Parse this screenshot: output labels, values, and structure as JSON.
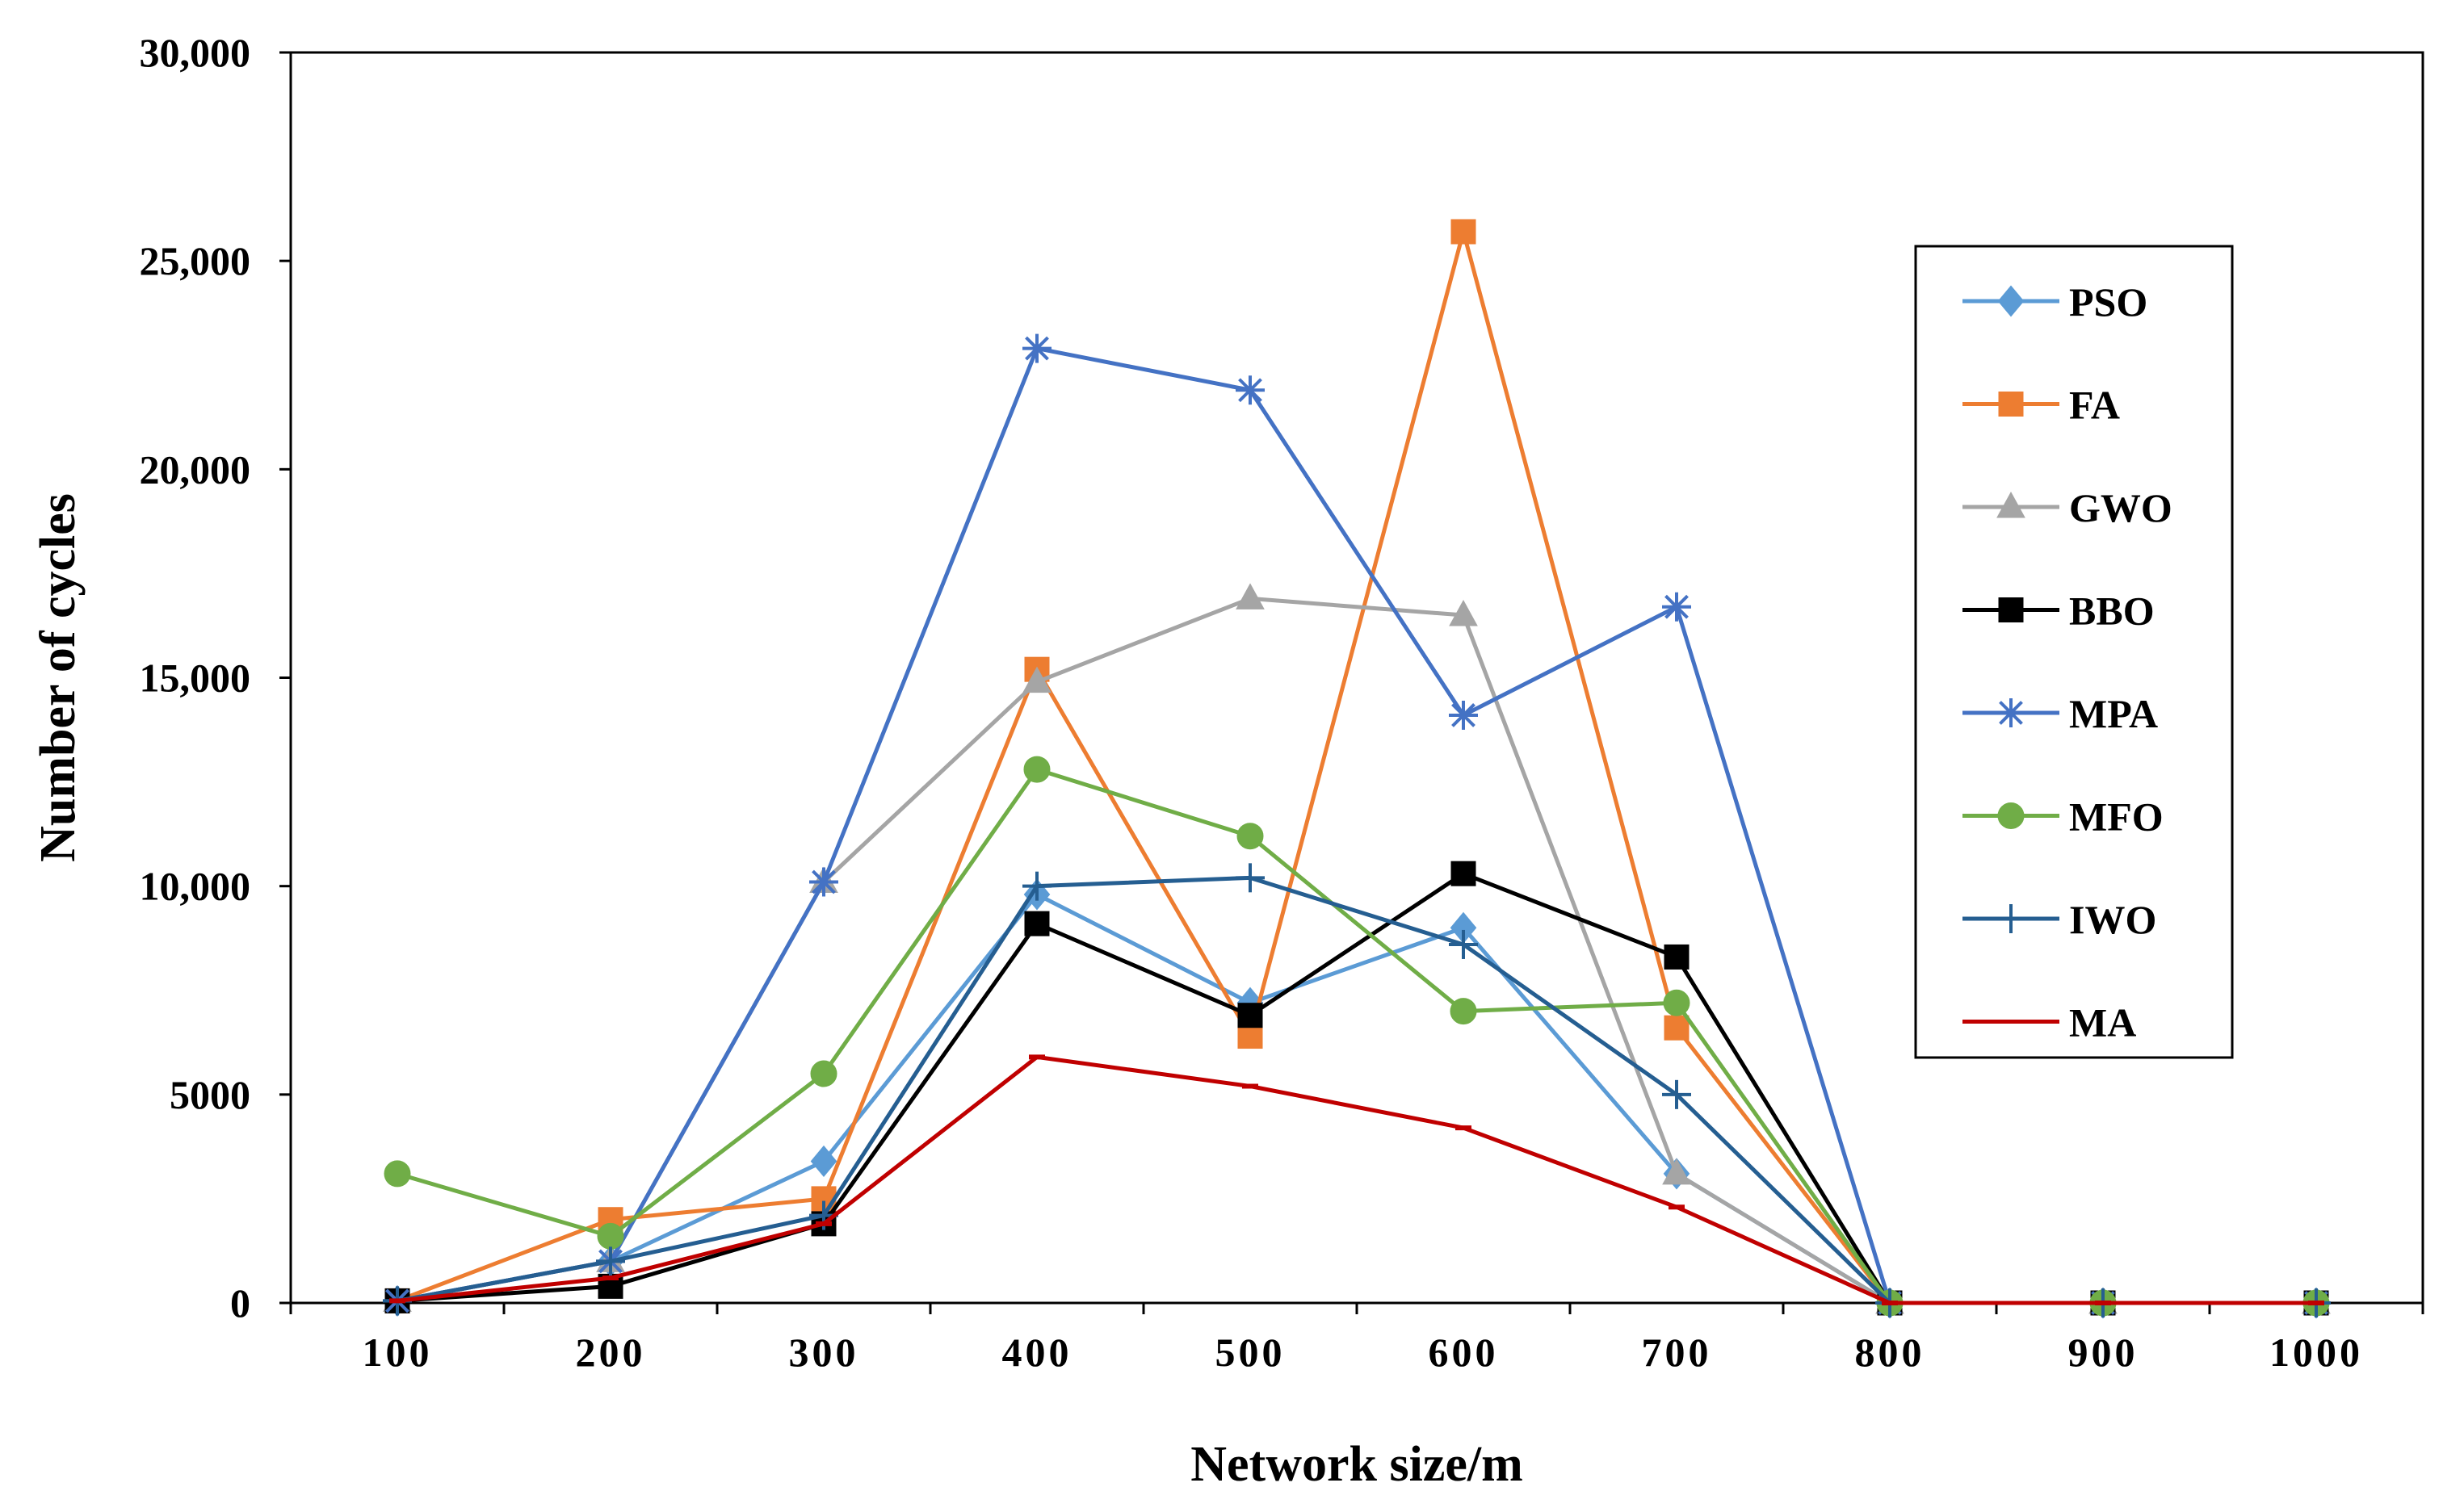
{
  "chart_data": {
    "type": "line",
    "xlabel": "Network size/m",
    "ylabel": "Number of cycles",
    "categories": [
      100,
      200,
      300,
      400,
      500,
      600,
      700,
      800,
      900,
      1000
    ],
    "ylim": [
      0,
      30000
    ],
    "yticks": [
      0,
      5000,
      10000,
      15000,
      20000,
      25000,
      30000
    ],
    "ytick_labels": [
      "0",
      "5000",
      "10,000",
      "15,000",
      "20,000",
      "25,000",
      "30,000"
    ],
    "grid": false,
    "legend_position": "right",
    "series": [
      {
        "name": "PSO",
        "color": "#5B9BD5",
        "marker": "diamond",
        "values": [
          50,
          1000,
          3400,
          9800,
          7200,
          9000,
          3100,
          0,
          0,
          0
        ]
      },
      {
        "name": "FA",
        "color": "#ED7D31",
        "marker": "square",
        "values": [
          50,
          2000,
          2500,
          15200,
          6400,
          25700,
          6600,
          0,
          0,
          0
        ]
      },
      {
        "name": "GWO",
        "color": "#A5A5A5",
        "marker": "triangle",
        "values": [
          50,
          1000,
          10100,
          14900,
          16900,
          16500,
          3100,
          0,
          0,
          0
        ]
      },
      {
        "name": "BBO",
        "color": "#000000",
        "marker": "square",
        "values": [
          50,
          400,
          1900,
          9100,
          6900,
          10300,
          8300,
          0,
          0,
          0
        ]
      },
      {
        "name": "MPA",
        "color": "#4472C4",
        "marker": "star",
        "values": [
          50,
          1000,
          10100,
          22900,
          21900,
          14100,
          16700,
          0,
          0,
          0
        ]
      },
      {
        "name": "MFO",
        "color": "#70AD47",
        "marker": "circle",
        "values": [
          3100,
          1600,
          5500,
          12800,
          11200,
          7000,
          7200,
          0,
          0,
          0
        ]
      },
      {
        "name": "IWO",
        "color": "#255E91",
        "marker": "plus",
        "values": [
          50,
          1000,
          2100,
          10000,
          10200,
          8600,
          5000,
          0,
          0,
          0
        ]
      },
      {
        "name": "MA",
        "color": "#C00000",
        "marker": "dash",
        "values": [
          50,
          600,
          1900,
          5900,
          5200,
          4200,
          2300,
          0,
          0,
          0
        ]
      }
    ]
  }
}
